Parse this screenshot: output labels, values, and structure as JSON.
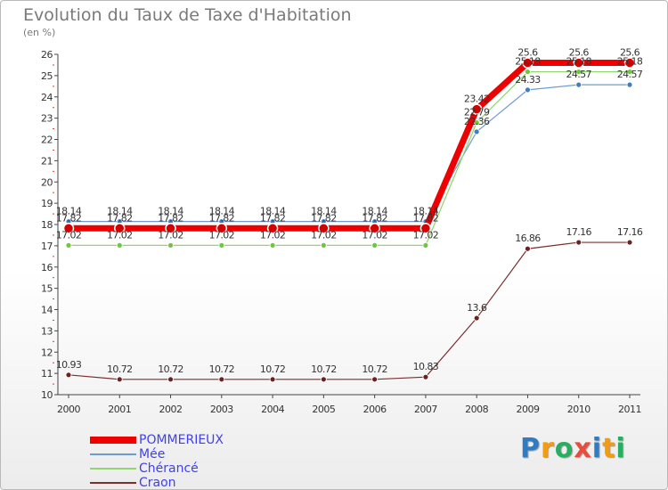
{
  "header": {
    "title": "Evolution du Taux de Taxe d'Habitation",
    "subtitle": "(en %)"
  },
  "logo": {
    "text": "Proxiti",
    "letters": [
      {
        "ch": "P",
        "color": "#2e7dc4"
      },
      {
        "ch": "r",
        "color": "#f39c12"
      },
      {
        "ch": "o",
        "color": "#27ae60"
      },
      {
        "ch": "x",
        "color": "#e74c3c"
      },
      {
        "ch": "i",
        "color": "#2e7dc4"
      },
      {
        "ch": "t",
        "color": "#f39c12"
      },
      {
        "ch": "i",
        "color": "#27ae60"
      }
    ]
  },
  "chart_data": {
    "type": "line",
    "x": [
      "2000",
      "2001",
      "2002",
      "2003",
      "2004",
      "2005",
      "2006",
      "2007",
      "2008",
      "2009",
      "2010",
      "2011"
    ],
    "ylim": [
      10,
      26
    ],
    "yticks": [
      "10",
      "11",
      "12",
      "13",
      "14",
      "15",
      "16",
      "17",
      "18",
      "19",
      "20",
      "21",
      "22",
      "23",
      "24",
      "25",
      "26"
    ],
    "grid": false,
    "legend_position": "bottom-left",
    "series": [
      {
        "name": "Mée",
        "color": "#6f9ccf",
        "marker": "#3f7fc0",
        "values": [
          18.14,
          18.14,
          18.14,
          18.14,
          18.14,
          18.14,
          18.14,
          18.14,
          22.36,
          24.33,
          24.57,
          24.57
        ],
        "labels": [
          "18.14",
          "18.14",
          "18.14",
          "18.14",
          "18.14",
          "18.14",
          "18.14",
          "18.14",
          "22.36",
          "24.33",
          "24.57",
          "24.57"
        ]
      },
      {
        "name": "Chérancé",
        "color": "#8fd66f",
        "marker": "#6cc93a",
        "values": [
          17.02,
          17.02,
          17.02,
          17.02,
          17.02,
          17.02,
          17.02,
          17.02,
          22.79,
          25.18,
          25.18,
          25.18
        ],
        "labels": [
          "17.02",
          "17.02",
          "17.02",
          "17.02",
          "17.02",
          "17.02",
          "17.02",
          "17.02",
          "22.79",
          "25.18",
          "25.18",
          "25.18"
        ]
      },
      {
        "name": "Craon",
        "color": "#7a3030",
        "marker": "#6b2121",
        "values": [
          10.93,
          10.72,
          10.72,
          10.72,
          10.72,
          10.72,
          10.72,
          10.83,
          13.6,
          16.86,
          17.16,
          17.16
        ],
        "labels": [
          "10.93",
          "10.72",
          "10.72",
          "10.72",
          "10.72",
          "10.72",
          "10.72",
          "10.83",
          "13.6",
          "16.86",
          "17.16",
          "17.16"
        ]
      },
      {
        "name": "POMMERIEUX",
        "color": "#ee0000",
        "marker": "#d40000",
        "thick": true,
        "values": [
          17.82,
          17.82,
          17.82,
          17.82,
          17.82,
          17.82,
          17.82,
          17.82,
          23.42,
          25.6,
          25.6,
          25.6
        ],
        "labels": [
          "17.82",
          "17.82",
          "17.82",
          "17.82",
          "17.82",
          "17.82",
          "17.82",
          "17.82",
          "23.42",
          "25.6",
          "25.6",
          "25.6"
        ]
      }
    ],
    "legend": [
      {
        "name": "POMMERIEUX",
        "color": "#ee0000",
        "text_color": "#3f3ff0",
        "thick": true
      },
      {
        "name": "Mée",
        "color": "#6f9ccf",
        "text_color": "#3f3ff0"
      },
      {
        "name": "Chérancé",
        "color": "#8fd66f",
        "text_color": "#3f3ff0"
      },
      {
        "name": "Craon",
        "color": "#7a3030",
        "text_color": "#3f3ff0"
      }
    ]
  }
}
